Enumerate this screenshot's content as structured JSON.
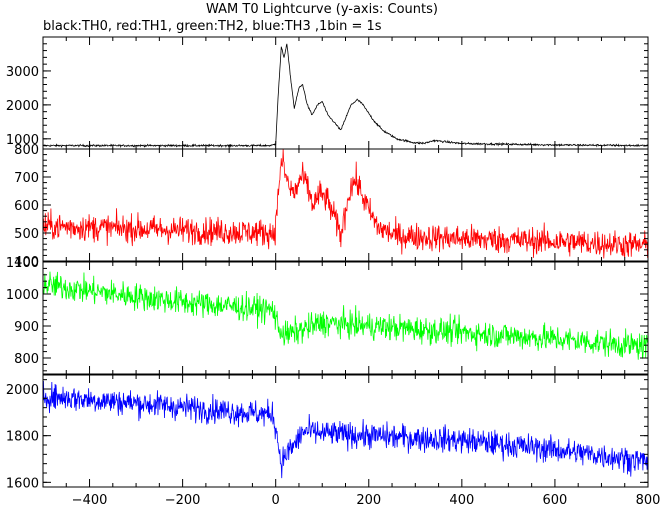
{
  "chart_data": {
    "type": "line",
    "title": "WAM T0 Lightcurve (y-axis: Counts)",
    "subtitle": "black:TH0, red:TH1, green:TH2, blue:TH3 ,1bin = 1s",
    "xlim": [
      -500,
      800
    ],
    "x_ticks": [
      -400,
      -200,
      0,
      200,
      400,
      600,
      800
    ],
    "x_tick_labels": [
      "−400",
      "−200",
      "0",
      "200",
      "400",
      "600",
      "800"
    ],
    "x_minor_step": 50,
    "bin_size": 1,
    "grid": false,
    "legend": "none",
    "panels": [
      {
        "series_id": "TH0",
        "color": "#000000",
        "ylim": [
          700,
          4000
        ],
        "y_ticks": [
          1000,
          2000,
          3000
        ],
        "y_tick_labels": [
          "1000",
          "2000",
          "3000"
        ],
        "noise_amplitude": 20,
        "profile": [
          [
            -500,
            800
          ],
          [
            -10,
            800
          ],
          [
            0,
            850
          ],
          [
            5,
            2200
          ],
          [
            12,
            3700
          ],
          [
            18,
            3400
          ],
          [
            24,
            3800
          ],
          [
            32,
            2800
          ],
          [
            40,
            1900
          ],
          [
            50,
            2500
          ],
          [
            58,
            2600
          ],
          [
            68,
            2000
          ],
          [
            78,
            1700
          ],
          [
            90,
            2000
          ],
          [
            100,
            2100
          ],
          [
            112,
            1700
          ],
          [
            125,
            1500
          ],
          [
            140,
            1250
          ],
          [
            150,
            1600
          ],
          [
            162,
            2000
          ],
          [
            175,
            2150
          ],
          [
            185,
            2050
          ],
          [
            195,
            1850
          ],
          [
            210,
            1550
          ],
          [
            230,
            1250
          ],
          [
            260,
            1000
          ],
          [
            300,
            880
          ],
          [
            320,
            870
          ],
          [
            340,
            950
          ],
          [
            360,
            920
          ],
          [
            400,
            860
          ],
          [
            500,
            840
          ],
          [
            600,
            820
          ],
          [
            800,
            800
          ]
        ]
      },
      {
        "series_id": "TH1",
        "color": "#ff0000",
        "ylim": [
          400,
          800
        ],
        "y_ticks": [
          400,
          500,
          600,
          700,
          800
        ],
        "y_tick_labels": [
          "400",
          "500",
          "600",
          "700",
          "800"
        ],
        "noise_amplitude": 35,
        "profile": [
          [
            -500,
            525
          ],
          [
            -300,
            515
          ],
          [
            -100,
            505
          ],
          [
            -5,
            500
          ],
          [
            0,
            520
          ],
          [
            8,
            700
          ],
          [
            15,
            760
          ],
          [
            22,
            700
          ],
          [
            30,
            660
          ],
          [
            40,
            640
          ],
          [
            55,
            700
          ],
          [
            65,
            680
          ],
          [
            80,
            600
          ],
          [
            95,
            640
          ],
          [
            110,
            620
          ],
          [
            125,
            560
          ],
          [
            140,
            490
          ],
          [
            150,
            580
          ],
          [
            160,
            660
          ],
          [
            172,
            690
          ],
          [
            185,
            640
          ],
          [
            200,
            580
          ],
          [
            220,
            520
          ],
          [
            260,
            490
          ],
          [
            400,
            480
          ],
          [
            600,
            470
          ],
          [
            800,
            455
          ]
        ]
      },
      {
        "series_id": "TH2",
        "color": "#00ff00",
        "ylim": [
          750,
          1100
        ],
        "y_ticks": [
          800,
          900,
          1000,
          1100
        ],
        "y_tick_labels": [
          "800",
          "900",
          "1000",
          "1100"
        ],
        "noise_amplitude": 30,
        "profile": [
          [
            -500,
            1030
          ],
          [
            -400,
            1010
          ],
          [
            -200,
            975
          ],
          [
            -5,
            950
          ],
          [
            5,
            900
          ],
          [
            20,
            870
          ],
          [
            40,
            880
          ],
          [
            100,
            910
          ],
          [
            200,
            900
          ],
          [
            400,
            880
          ],
          [
            600,
            860
          ],
          [
            800,
            835
          ]
        ]
      },
      {
        "series_id": "TH3",
        "color": "#0000ff",
        "ylim": [
          1580,
          2060
        ],
        "y_ticks": [
          1600,
          1800,
          2000
        ],
        "y_tick_labels": [
          "1600",
          "1800",
          "2000"
        ],
        "noise_amplitude": 40,
        "profile": [
          [
            -500,
            1970
          ],
          [
            -300,
            1940
          ],
          [
            -100,
            1905
          ],
          [
            -5,
            1890
          ],
          [
            3,
            1800
          ],
          [
            12,
            1680
          ],
          [
            22,
            1720
          ],
          [
            40,
            1760
          ],
          [
            60,
            1820
          ],
          [
            100,
            1810
          ],
          [
            200,
            1800
          ],
          [
            400,
            1780
          ],
          [
            600,
            1740
          ],
          [
            800,
            1690
          ]
        ]
      }
    ]
  }
}
